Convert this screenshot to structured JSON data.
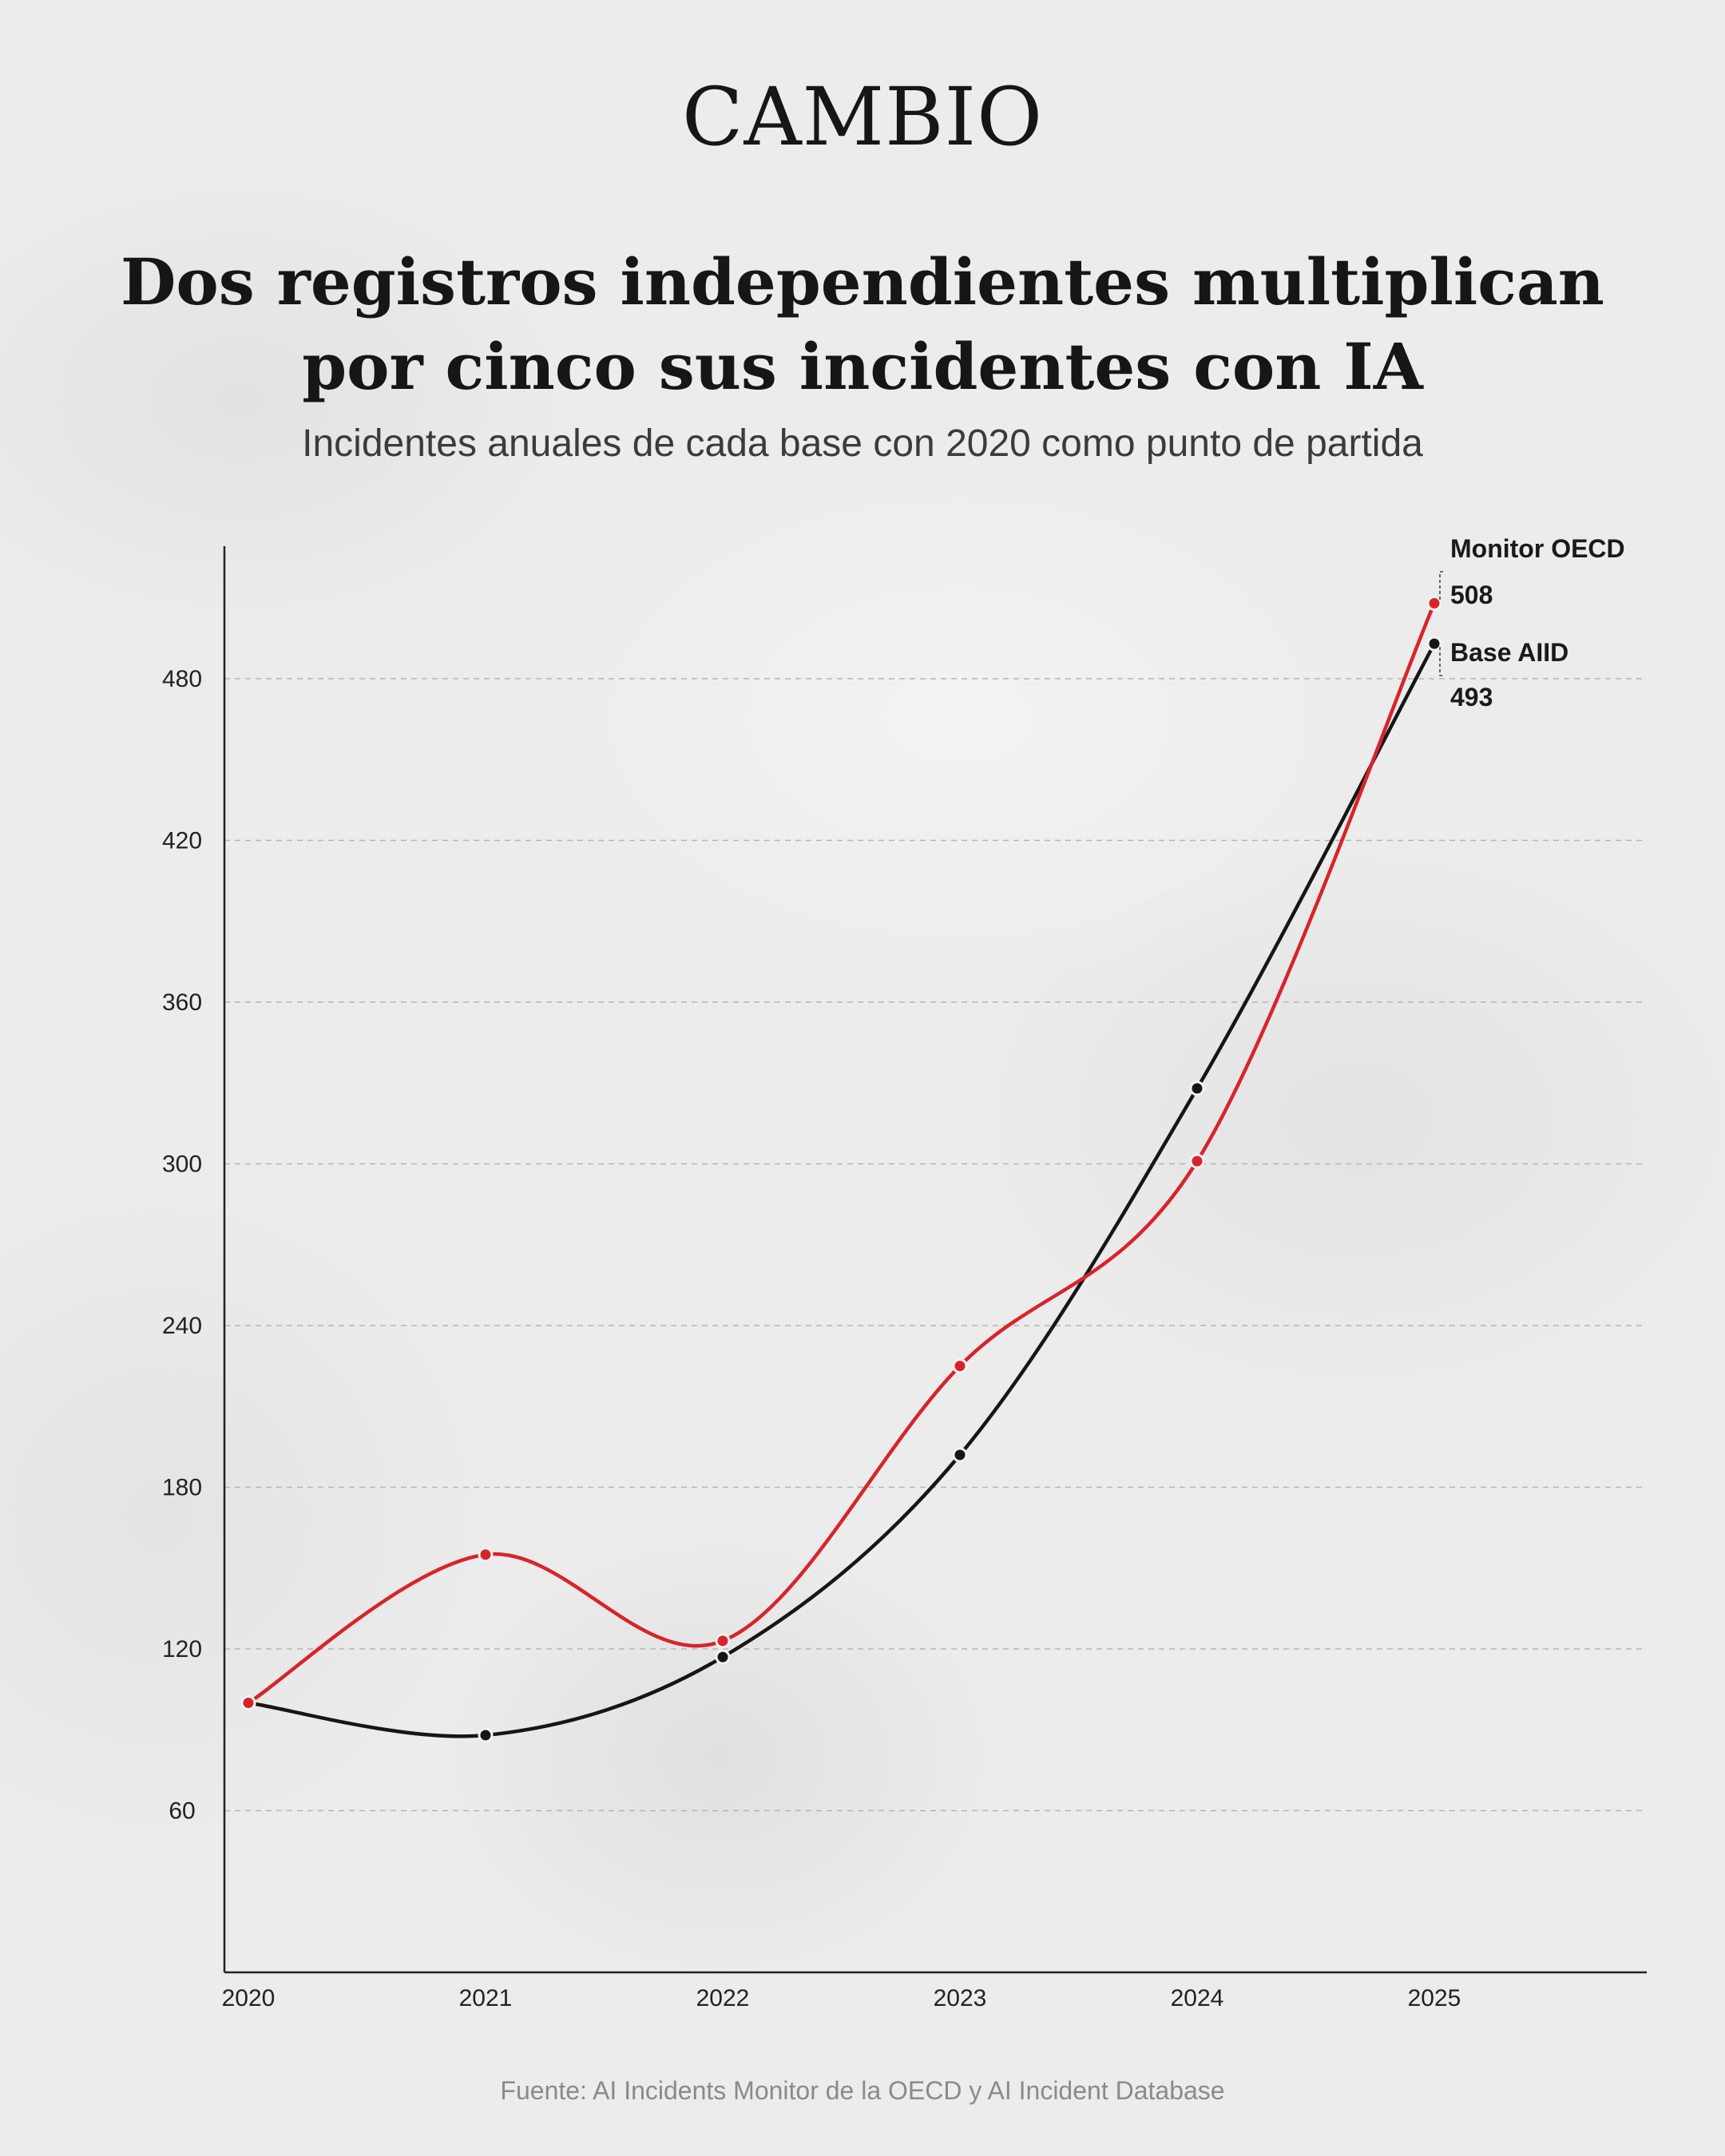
{
  "brand": "CAMBIO",
  "title_line1": "Dos registros independientes multiplican",
  "title_line2": "por cinco sus incidentes con IA",
  "subtitle": "Incidentes anuales de cada base con 2020 como punto de partida",
  "source": "Fuente: AI Incidents Monitor de la OECD y AI Incident Database",
  "colors": {
    "oecd": "#d9232a",
    "aiid": "#161616",
    "grid": "#b5b5b5",
    "axis": "#222222"
  },
  "chart_data": {
    "type": "line",
    "x": [
      "2020",
      "2021",
      "2022",
      "2023",
      "2024",
      "2025"
    ],
    "ylim": [
      0,
      530
    ],
    "yticks": [
      60,
      120,
      180,
      240,
      300,
      360,
      420,
      480
    ],
    "grid": true,
    "series": [
      {
        "name": "Monitor OECD",
        "end_label": "508",
        "color_key": "oecd",
        "values": [
          100,
          155,
          123,
          225,
          301,
          508
        ]
      },
      {
        "name": "Base AIID",
        "end_label": "493",
        "color_key": "aiid",
        "values": [
          100,
          88,
          117,
          192,
          328,
          493
        ]
      }
    ]
  }
}
